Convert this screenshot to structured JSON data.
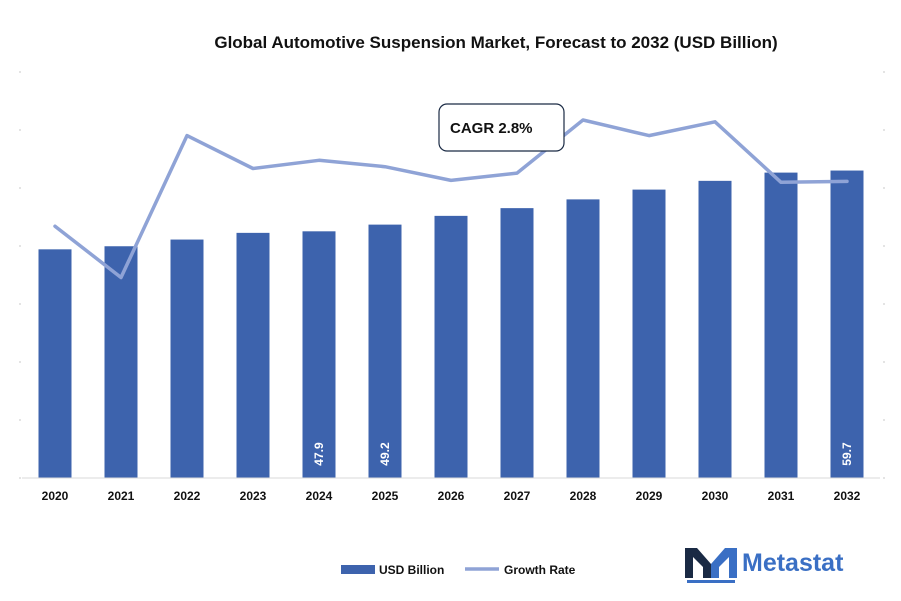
{
  "colors": {
    "bar": "#3d63ad",
    "line": "#8fa3d6",
    "brand": "#3a6fc4",
    "brand_dark": "#1a2a44"
  },
  "brand": {
    "name": "Metastat",
    "icon": "metastat-logo-icon"
  },
  "chart_data": {
    "type": "bar",
    "title": "Global Automotive Suspension Market, Forecast to 2032 (USD Billion)",
    "xlabel": "",
    "ylabel": "",
    "grid": false,
    "legend_position": "bottom",
    "categories": [
      "2020",
      "2021",
      "2022",
      "2023",
      "2024",
      "2025",
      "2026",
      "2027",
      "2028",
      "2029",
      "2030",
      "2031",
      "2032"
    ],
    "ylim": [
      0,
      80
    ],
    "series": [
      {
        "name": "USD Billion",
        "kind": "bar",
        "values": [
          44.4,
          45.0,
          46.3,
          47.6,
          47.9,
          49.2,
          50.9,
          52.4,
          54.1,
          56.0,
          57.7,
          59.3,
          59.7
        ],
        "data_labels": [
          "",
          "",
          "",
          "",
          "47.9",
          "49.2",
          "",
          "",
          "",
          "",
          "",
          "",
          "59.7"
        ]
      },
      {
        "name": "Growth Rate",
        "kind": "line",
        "axis": "secondary",
        "ylim": [
          0,
          4.5
        ],
        "values": [
          2.75,
          2.19,
          3.74,
          3.38,
          3.47,
          3.4,
          3.25,
          3.33,
          3.91,
          3.74,
          3.89,
          3.23,
          3.24
        ]
      }
    ],
    "annotation": {
      "text": "CAGR 2.8%"
    }
  }
}
